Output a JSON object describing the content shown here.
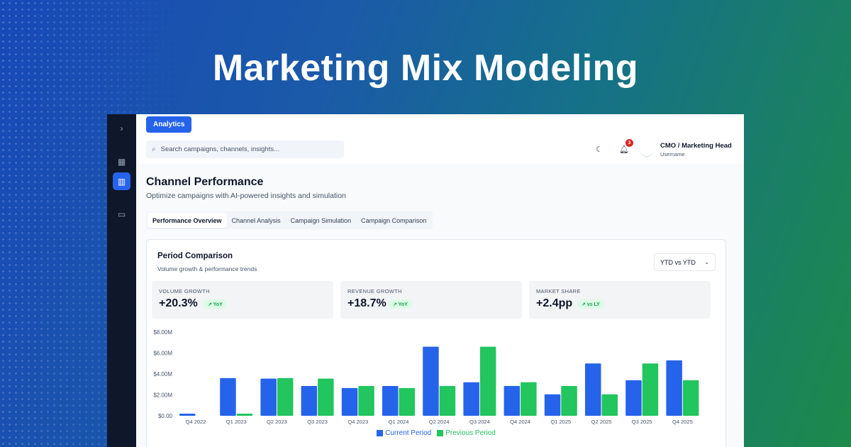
{
  "hero": {
    "title": "Marketing Mix Modeling"
  },
  "sidebar": {
    "items": [
      {
        "name": "sidebar-expand",
        "icon": "chevron-right-icon",
        "glyph": "›",
        "active": false
      },
      {
        "name": "sidebar-item-dashboard",
        "icon": "grid-icon",
        "glyph": "▦",
        "active": false
      },
      {
        "name": "sidebar-item-analytics",
        "icon": "bar-chart-icon",
        "glyph": "▥",
        "active": true
      },
      {
        "name": "sidebar-item-messages",
        "icon": "message-icon",
        "glyph": "▭",
        "active": false
      }
    ]
  },
  "topbar": {
    "analytics_label": "Analytics",
    "search_placeholder": "Search campaigns, channels, insights...",
    "notification_count": "3",
    "user_name": "CMO / Marketing Head",
    "user_role": "Username"
  },
  "page": {
    "title": "Channel Performance",
    "subtitle": "Optimize campaigns with AI-powered insights and simulation",
    "tabs": [
      {
        "label": "Performance Overview",
        "active": true
      },
      {
        "label": "Channel Analysis",
        "active": false
      },
      {
        "label": "Campaign Simulation",
        "active": false
      },
      {
        "label": "Campaign Comparison",
        "active": false
      }
    ]
  },
  "card": {
    "title": "Period Comparison",
    "subtitle": "Volume growth & performance trends",
    "select_value": "YTD vs YTD",
    "kpis": [
      {
        "label": "VOLUME GROWTH",
        "value": "+20.3%",
        "pill": "↗ YoY"
      },
      {
        "label": "REVENUE GROWTH",
        "value": "+18.7%",
        "pill": "↗ YoY"
      },
      {
        "label": "MARKET SHARE",
        "value": "+2.4pp",
        "pill": "↗ vs LY"
      }
    ]
  },
  "colors": {
    "current": "#2563eb",
    "previous": "#22c55e"
  },
  "chart_data": {
    "type": "bar",
    "categories": [
      "Q4 2022",
      "Q1 2023",
      "Q2 2023",
      "Q3 2023",
      "Q4 2023",
      "Q1 2024",
      "Q2 2024",
      "Q3 2024",
      "Q4 2024",
      "Q1 2025",
      "Q2 2025",
      "Q3 2025",
      "Q4 2025"
    ],
    "series": [
      {
        "name": "Current Period",
        "values": [
          0.2,
          3.6,
          3.55,
          2.85,
          2.65,
          2.85,
          6.6,
          3.2,
          2.85,
          2.05,
          5.0,
          3.4,
          5.3
        ]
      },
      {
        "name": "Previous Period",
        "values": [
          0,
          0.2,
          3.6,
          3.55,
          2.85,
          2.65,
          2.85,
          6.6,
          3.2,
          2.85,
          2.05,
          5.0,
          3.4
        ]
      }
    ],
    "yticks": [
      "$0.00",
      "$2.00M",
      "$4.00M",
      "$6.00M",
      "$8.00M"
    ],
    "ylim": [
      0,
      8
    ],
    "grid": false,
    "legend": "bottom-center"
  }
}
